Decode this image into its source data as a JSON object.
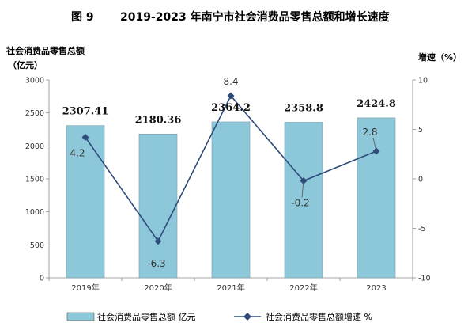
{
  "figure": {
    "number": "图 9",
    "title": "2019-2023 年南宁市社会消费品零售总额和增长速度"
  },
  "chart_data": {
    "type": "bar",
    "categories": [
      "2019年",
      "2020年",
      "2021年",
      "2022年",
      "2023"
    ],
    "series": [
      {
        "name": "社会消费品零售总额 亿元",
        "type": "bar",
        "axis": "left",
        "values": [
          2307.41,
          2180.36,
          2364.2,
          2358.8,
          2424.8
        ],
        "labels": [
          "2307.41",
          "2180.36",
          "2364.2",
          "2358.8",
          "2424.8"
        ],
        "color": "#8DC8DA"
      },
      {
        "name": "社会消费品零售总额增速 %",
        "type": "line",
        "axis": "right",
        "values": [
          4.2,
          -6.3,
          8.4,
          -0.2,
          2.8
        ],
        "labels": [
          "4.2",
          "-6.3",
          "8.4",
          "-0.2",
          "2.8"
        ],
        "color": "#2E4B7A"
      }
    ],
    "ylabel_left": [
      "社会消费品零售总额",
      "（亿元）"
    ],
    "ylabel_right": "增速（%）",
    "ylim_left": [
      0,
      3000
    ],
    "ylim_right": [
      -10,
      10
    ],
    "yticks_left": [
      0,
      500,
      1000,
      1500,
      2000,
      2500,
      3000
    ],
    "yticks_right": [
      -10,
      -5,
      0,
      5,
      10
    ],
    "grid": false,
    "legend_position": "bottom"
  }
}
